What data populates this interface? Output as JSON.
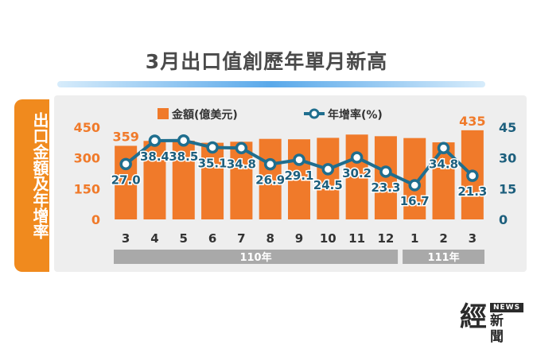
{
  "title": "3月出口值創歷年單月新高",
  "side_label": "出口金額及年增率",
  "logo": {
    "main": "經",
    "badge": "NEWS",
    "sub": "新聞"
  },
  "colors": {
    "bar": "#f07a2a",
    "line": "#1f6e8e",
    "label_line": "#1d5f7d",
    "bar_label": "#f07a2a",
    "axis_left": "#f07a2a",
    "axis_right": "#1d5f7d",
    "year_band": "#a9a9a9"
  },
  "chart_data": {
    "type": "bar",
    "categories": [
      "3",
      "4",
      "5",
      "6",
      "7",
      "8",
      "9",
      "10",
      "11",
      "12",
      "1",
      "2",
      "3"
    ],
    "year_groups": [
      {
        "label": "110年",
        "from": 0,
        "to": 9
      },
      {
        "label": "111年",
        "from": 10,
        "to": 12
      }
    ],
    "series": [
      {
        "name": "金額(億美元)",
        "type": "bar",
        "axis": "left",
        "values": [
          359,
          383,
          384,
          374,
          379,
          393,
          391,
          398,
          414,
          406,
          397,
          376,
          435
        ]
      },
      {
        "name": "年增率(%)",
        "type": "line",
        "axis": "right",
        "values": [
          27.0,
          38.4,
          38.5,
          35.1,
          34.8,
          26.9,
          29.1,
          24.5,
          30.2,
          23.3,
          16.7,
          34.8,
          21.3
        ]
      }
    ],
    "bar_value_labels": [
      "359",
      "",
      "",
      "",
      "",
      "",
      "",
      "",
      "",
      "",
      "",
      "",
      "435"
    ],
    "line_value_labels": [
      "27.0",
      "38.4",
      "38.5",
      "35.1",
      "34.8",
      "26.9",
      "29.1",
      "24.5",
      "30.2",
      "23.3",
      "16.7",
      "34.8",
      "21.3"
    ],
    "left_axis": {
      "ylim": [
        0,
        450
      ],
      "ticks": [
        "0",
        "150",
        "300",
        "450"
      ],
      "tick_values": [
        0,
        150,
        300,
        450
      ]
    },
    "right_axis": {
      "ylim": [
        0,
        45
      ],
      "ticks": [
        "0",
        "15",
        "30",
        "45"
      ],
      "tick_values": [
        0,
        15,
        30,
        45
      ]
    },
    "legend": {
      "placement": "top-center",
      "items": [
        "金額(億美元)",
        "年增率(%)"
      ]
    },
    "grid": false
  }
}
